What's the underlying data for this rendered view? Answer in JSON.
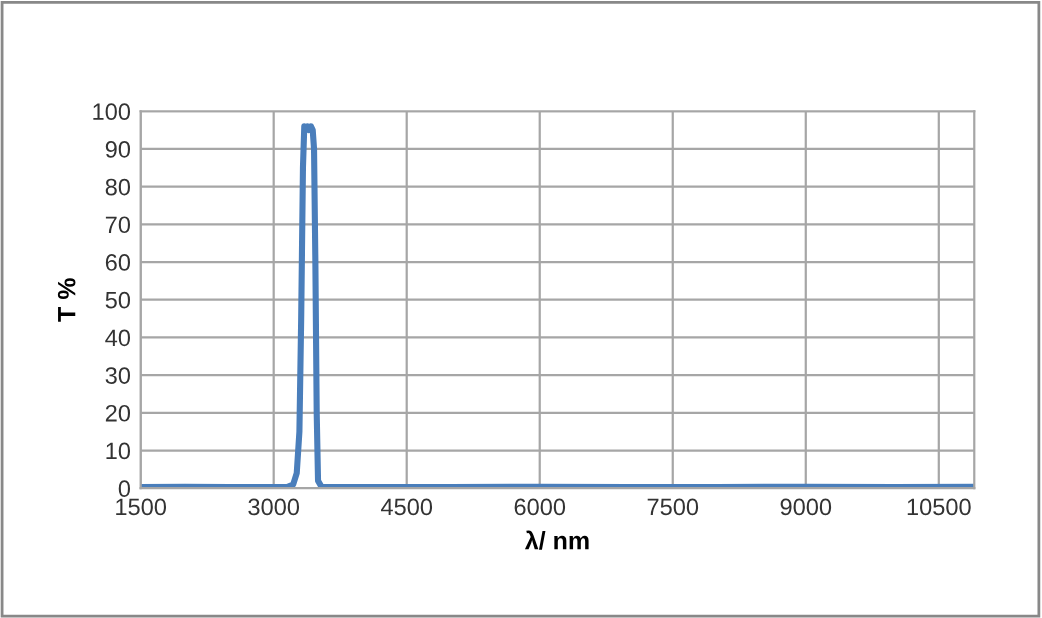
{
  "chart_data": {
    "type": "line",
    "xlabel": "λ/ nm",
    "ylabel": "T %",
    "x": [
      1500,
      2000,
      2500,
      3000,
      3150,
      3220,
      3260,
      3290,
      3310,
      3330,
      3345,
      3360,
      3380,
      3400,
      3420,
      3440,
      3455,
      3470,
      3485,
      3500,
      3540,
      3600,
      4000,
      5000,
      6000,
      7000,
      8000,
      9000,
      10000,
      10900
    ],
    "series": [
      {
        "color": "#4a7ebb",
        "values": [
          0.3,
          0.4,
          0.3,
          0.3,
          0.3,
          1,
          4,
          15,
          45,
          85,
          96,
          95,
          96,
          95,
          96,
          95,
          90,
          60,
          20,
          2,
          0.3,
          0.3,
          0.3,
          0.3,
          0.4,
          0.3,
          0.3,
          0.4,
          0.3,
          0.4
        ]
      }
    ],
    "xlim": [
      1500,
      10900
    ],
    "xticks": [
      1500,
      3000,
      4500,
      6000,
      7500,
      9000,
      10500
    ],
    "ylim": [
      0,
      100
    ],
    "yticks": [
      0,
      10,
      20,
      30,
      40,
      50,
      60,
      70,
      80,
      90,
      100
    ],
    "grid": true,
    "legend": false
  }
}
